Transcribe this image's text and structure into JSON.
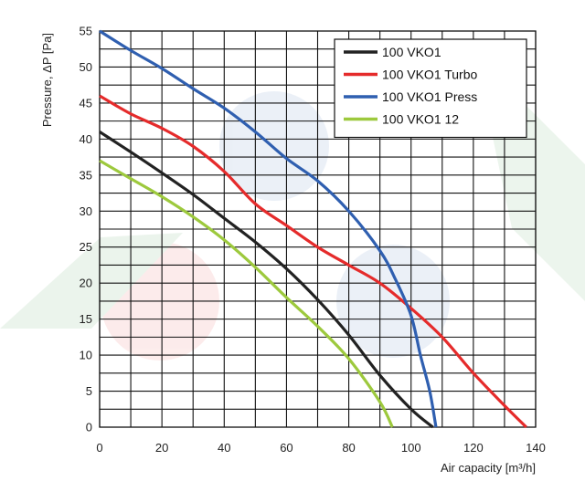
{
  "chart_data": {
    "type": "line",
    "xlabel": "Air capacity [m³/h]",
    "ylabel": "Pressure, ΔP [Pa]",
    "xlim": [
      0,
      140
    ],
    "ylim": [
      0,
      55
    ],
    "x_major_ticks": [
      0,
      20,
      40,
      60,
      80,
      100,
      120,
      140
    ],
    "y_major_ticks": [
      0,
      5,
      10,
      15,
      20,
      25,
      30,
      35,
      40,
      45,
      50,
      55
    ],
    "x_grid_step": 10,
    "y_grid_step": 2.5,
    "grid": true,
    "legend_position": "top-right",
    "series": [
      {
        "name": "100 VKO1",
        "color": "#222222",
        "points": [
          [
            0,
            41
          ],
          [
            10,
            38.2
          ],
          [
            20,
            35.3
          ],
          [
            30,
            32.3
          ],
          [
            40,
            29
          ],
          [
            50,
            25.7
          ],
          [
            60,
            22
          ],
          [
            70,
            17.7
          ],
          [
            80,
            12.8
          ],
          [
            90,
            7.2
          ],
          [
            100,
            2.5
          ],
          [
            107,
            0
          ]
        ]
      },
      {
        "name": "100 VKO1 Turbo",
        "color": "#e52b2b",
        "points": [
          [
            0,
            46
          ],
          [
            10,
            43.5
          ],
          [
            20,
            41.5
          ],
          [
            30,
            39
          ],
          [
            40,
            35.5
          ],
          [
            50,
            31
          ],
          [
            60,
            28
          ],
          [
            70,
            25
          ],
          [
            80,
            22.5
          ],
          [
            90,
            20
          ],
          [
            100,
            16.5
          ],
          [
            110,
            12.5
          ],
          [
            120,
            7.5
          ],
          [
            130,
            3
          ],
          [
            137,
            0
          ]
        ]
      },
      {
        "name": "100 VKO1 Press",
        "color": "#2f5fb0",
        "points": [
          [
            0,
            55
          ],
          [
            10,
            52.3
          ],
          [
            20,
            49.8
          ],
          [
            30,
            47
          ],
          [
            40,
            44.3
          ],
          [
            50,
            41
          ],
          [
            60,
            37.3
          ],
          [
            70,
            34.2
          ],
          [
            80,
            30
          ],
          [
            90,
            24.5
          ],
          [
            95,
            20.5
          ],
          [
            100,
            15.5
          ],
          [
            103,
            10
          ],
          [
            106,
            5
          ],
          [
            108,
            0
          ]
        ]
      },
      {
        "name": "100 VKO1 12",
        "color": "#9dc93d",
        "points": [
          [
            0,
            37
          ],
          [
            10,
            34.5
          ],
          [
            20,
            32
          ],
          [
            30,
            29.2
          ],
          [
            40,
            26
          ],
          [
            50,
            22.2
          ],
          [
            60,
            18
          ],
          [
            70,
            14
          ],
          [
            80,
            9.5
          ],
          [
            90,
            3.5
          ],
          [
            94,
            0
          ]
        ]
      }
    ]
  }
}
